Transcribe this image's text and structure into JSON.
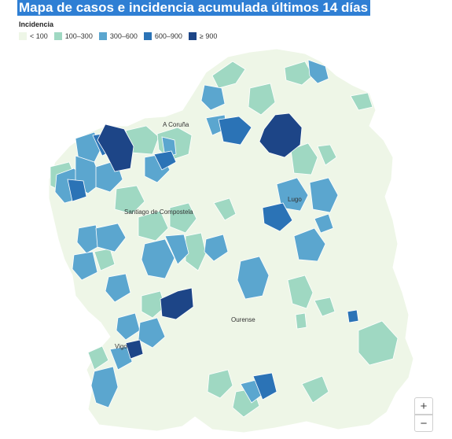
{
  "title": "Mapa de casos e incidencia acumulada últimos 14 días",
  "legend": {
    "title": "Incidencia",
    "items": [
      {
        "label": "< 100",
        "color": "#eef6e7"
      },
      {
        "label": "100–300",
        "color": "#9fd8c2"
      },
      {
        "label": "300–600",
        "color": "#5ba6cf"
      },
      {
        "label": "600–900",
        "color": "#2b73b6"
      },
      {
        "label": "≥ 900",
        "color": "#1d4587"
      }
    ]
  },
  "cities": {
    "a_coruna": "A Coruña",
    "santiago": "Santiago de Compostela",
    "lugo": "Lugo",
    "ourense": "Ourense",
    "vigo": "Vigo"
  },
  "zoom": {
    "in_label": "+",
    "out_label": "−"
  },
  "colors": {
    "title_bg": "#2f7fd4",
    "border": "#ffffff"
  }
}
